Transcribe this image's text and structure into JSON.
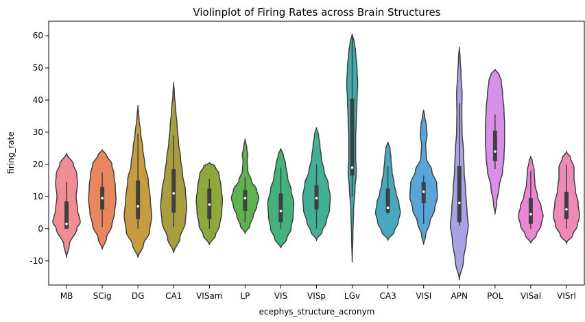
{
  "chart_data": {
    "type": "violin",
    "title": "Violinplot of Firing Rates across Brain Structures",
    "xlabel": "ecephys_structure_acronym",
    "ylabel": "firing_rate",
    "ylim": [
      -17.5,
      64.5
    ],
    "yticks": [
      -10,
      0,
      10,
      20,
      30,
      40,
      50,
      60
    ],
    "grid": false,
    "categories": [
      "MB",
      "SCig",
      "DG",
      "CA1",
      "VISam",
      "LP",
      "VIS",
      "VISp",
      "LGv",
      "CA3",
      "VISl",
      "APN",
      "POL",
      "VISal",
      "VISrl"
    ],
    "colors": [
      "#f08d93",
      "#e8875e",
      "#c79b3f",
      "#aa9d3e",
      "#8ea83b",
      "#5db34c",
      "#44b37b",
      "#41b094",
      "#40adaa",
      "#47a9be",
      "#58a6d8",
      "#a8a3e5",
      "#d98ee8",
      "#ea86d3",
      "#ef89b6"
    ],
    "series": [
      {
        "min": -9,
        "max": 23.5,
        "q1": 0,
        "median": 1.5,
        "q3": 8.5,
        "whisker_low": 0,
        "whisker_high": 14.5,
        "profile": [
          [
            -9,
            0
          ],
          [
            -5,
            0.2
          ],
          [
            0,
            0.75
          ],
          [
            2,
            1
          ],
          [
            6,
            0.8
          ],
          [
            10,
            0.7
          ],
          [
            14,
            0.8
          ],
          [
            17,
            0.75
          ],
          [
            20,
            0.5
          ],
          [
            23.5,
            0
          ]
        ]
      },
      {
        "min": -6.5,
        "max": 24.5,
        "q1": 6,
        "median": 9.5,
        "q3": 13,
        "whisker_low": 0.5,
        "whisker_high": 17.5,
        "profile": [
          [
            -6.5,
            0
          ],
          [
            -3,
            0.3
          ],
          [
            1,
            0.7
          ],
          [
            5,
            0.9
          ],
          [
            9,
            1
          ],
          [
            13,
            0.95
          ],
          [
            17,
            0.85
          ],
          [
            20,
            0.7
          ],
          [
            23,
            0.3
          ],
          [
            24.5,
            0
          ]
        ]
      },
      {
        "min": -9,
        "max": 38.5,
        "q1": 3,
        "median": 7,
        "q3": 15,
        "whisker_low": 0,
        "whisker_high": 29.5,
        "profile": [
          [
            -9,
            0
          ],
          [
            -5,
            0.4
          ],
          [
            -1,
            0.85
          ],
          [
            4,
            1
          ],
          [
            9,
            0.9
          ],
          [
            15,
            0.75
          ],
          [
            20,
            0.5
          ],
          [
            25,
            0.35
          ],
          [
            30,
            0.2
          ],
          [
            34,
            0.08
          ],
          [
            38.5,
            0
          ]
        ]
      },
      {
        "min": -7.5,
        "max": 45.5,
        "q1": 5,
        "median": 11,
        "q3": 18.5,
        "whisker_low": 0.5,
        "whisker_high": 29,
        "profile": [
          [
            -7.5,
            0
          ],
          [
            -3,
            0.45
          ],
          [
            2,
            0.85
          ],
          [
            7,
            0.95
          ],
          [
            12,
            0.85
          ],
          [
            17,
            0.65
          ],
          [
            22,
            0.5
          ],
          [
            27,
            0.35
          ],
          [
            32,
            0.25
          ],
          [
            37,
            0.15
          ],
          [
            42,
            0.05
          ],
          [
            45.5,
            0
          ]
        ]
      },
      {
        "min": -5,
        "max": 20.5,
        "q1": 3,
        "median": 7.5,
        "q3": 12.5,
        "whisker_low": 0,
        "whisker_high": 15.5,
        "profile": [
          [
            -5,
            0
          ],
          [
            -2,
            0.45
          ],
          [
            1,
            0.75
          ],
          [
            5,
            0.9
          ],
          [
            9,
            0.95
          ],
          [
            13,
            0.85
          ],
          [
            17,
            0.7
          ],
          [
            19.5,
            0.4
          ],
          [
            20.5,
            0
          ]
        ]
      },
      {
        "min": -1.5,
        "max": 28,
        "q1": 5.5,
        "median": 9.5,
        "q3": 12,
        "whisker_low": 2,
        "whisker_high": 16,
        "profile": [
          [
            -1.5,
            0
          ],
          [
            1,
            0.35
          ],
          [
            4,
            0.6
          ],
          [
            7,
            0.85
          ],
          [
            9.5,
            1
          ],
          [
            12,
            0.85
          ],
          [
            15,
            0.45
          ],
          [
            18,
            0.2
          ],
          [
            21,
            0.15
          ],
          [
            23,
            0.2
          ],
          [
            25,
            0.12
          ],
          [
            28,
            0
          ]
        ]
      },
      {
        "min": -6,
        "max": 25,
        "q1": 2,
        "median": 5.5,
        "q3": 11,
        "whisker_low": 0,
        "whisker_high": 19,
        "profile": [
          [
            -6,
            0
          ],
          [
            -3,
            0.45
          ],
          [
            0,
            0.75
          ],
          [
            4,
            0.9
          ],
          [
            8,
            0.95
          ],
          [
            12,
            0.75
          ],
          [
            16,
            0.5
          ],
          [
            20,
            0.35
          ],
          [
            23,
            0.18
          ],
          [
            25,
            0
          ]
        ]
      },
      {
        "min": -3.5,
        "max": 31.5,
        "q1": 6,
        "median": 9.5,
        "q3": 13.5,
        "whisker_low": 0,
        "whisker_high": 20,
        "profile": [
          [
            -3.5,
            0
          ],
          [
            -1,
            0.4
          ],
          [
            2,
            0.7
          ],
          [
            6,
            0.95
          ],
          [
            10,
            1
          ],
          [
            14,
            0.85
          ],
          [
            18,
            0.55
          ],
          [
            22,
            0.35
          ],
          [
            26,
            0.25
          ],
          [
            29,
            0.15
          ],
          [
            31.5,
            0
          ]
        ]
      },
      {
        "min": -10.5,
        "max": 60.5,
        "q1": 16.5,
        "median": 19,
        "q3": 40.5,
        "whisker_low": 10,
        "whisker_high": 60,
        "profile": [
          [
            -10.5,
            0
          ],
          [
            -2,
            0.05
          ],
          [
            6,
            0.1
          ],
          [
            12,
            0.2
          ],
          [
            18,
            0.3
          ],
          [
            22,
            0.25
          ],
          [
            28,
            0.25
          ],
          [
            34,
            0.3
          ],
          [
            40,
            0.35
          ],
          [
            45,
            0.4
          ],
          [
            50,
            0.35
          ],
          [
            55,
            0.25
          ],
          [
            58,
            0.15
          ],
          [
            60.5,
            0
          ]
        ]
      },
      {
        "min": -3.5,
        "max": 27,
        "q1": 5,
        "median": 6.5,
        "q3": 12.5,
        "whisker_low": 4.5,
        "whisker_high": 19.5,
        "profile": [
          [
            -3.5,
            0
          ],
          [
            -1,
            0.45
          ],
          [
            2,
            0.75
          ],
          [
            5,
            0.9
          ],
          [
            8,
            0.8
          ],
          [
            11,
            0.6
          ],
          [
            14,
            0.45
          ],
          [
            18,
            0.3
          ],
          [
            22,
            0.22
          ],
          [
            25,
            0.15
          ],
          [
            27,
            0
          ]
        ]
      },
      {
        "min": -5,
        "max": 37,
        "q1": 8,
        "median": 11.5,
        "q3": 14.5,
        "whisker_low": 1.5,
        "whisker_high": 16.5,
        "profile": [
          [
            -5,
            0
          ],
          [
            -2,
            0.15
          ],
          [
            2,
            0.45
          ],
          [
            6,
            0.8
          ],
          [
            10,
            1
          ],
          [
            14,
            0.95
          ],
          [
            18,
            0.6
          ],
          [
            22,
            0.2
          ],
          [
            26,
            0.15
          ],
          [
            29,
            0.25
          ],
          [
            32,
            0.2
          ],
          [
            35,
            0.08
          ],
          [
            37,
            0
          ]
        ]
      },
      {
        "min": -16,
        "max": 56.5,
        "q1": 2,
        "median": 8,
        "q3": 19.5,
        "whisker_low": 1,
        "whisker_high": 39,
        "profile": [
          [
            -16,
            0
          ],
          [
            -10,
            0.3
          ],
          [
            -4,
            0.5
          ],
          [
            1,
            0.65
          ],
          [
            6,
            0.55
          ],
          [
            12,
            0.45
          ],
          [
            18,
            0.35
          ],
          [
            24,
            0.3
          ],
          [
            30,
            0.2
          ],
          [
            36,
            0.18
          ],
          [
            42,
            0.2
          ],
          [
            48,
            0.12
          ],
          [
            53,
            0.06
          ],
          [
            56.5,
            0
          ]
        ]
      },
      {
        "min": 4.5,
        "max": 49.5,
        "q1": 21,
        "median": 24,
        "q3": 30.5,
        "whisker_low": 18.5,
        "whisker_high": 35.5,
        "profile": [
          [
            4.5,
            0
          ],
          [
            8,
            0.12
          ],
          [
            13,
            0.3
          ],
          [
            18,
            0.55
          ],
          [
            22,
            0.65
          ],
          [
            27,
            0.7
          ],
          [
            32,
            0.7
          ],
          [
            37,
            0.65
          ],
          [
            42,
            0.55
          ],
          [
            46,
            0.45
          ],
          [
            48,
            0.3
          ],
          [
            49.5,
            0
          ]
        ]
      },
      {
        "min": -4.5,
        "max": 22.5,
        "q1": 1.5,
        "median": 4.5,
        "q3": 9.5,
        "whisker_low": 0,
        "whisker_high": 18,
        "profile": [
          [
            -4.5,
            0
          ],
          [
            -2,
            0.4
          ],
          [
            1,
            0.75
          ],
          [
            4,
            0.9
          ],
          [
            7,
            0.75
          ],
          [
            10,
            0.5
          ],
          [
            14,
            0.3
          ],
          [
            18,
            0.25
          ],
          [
            21,
            0.12
          ],
          [
            22.5,
            0
          ]
        ]
      },
      {
        "min": -4.5,
        "max": 24,
        "q1": 3,
        "median": 6,
        "q3": 11.5,
        "whisker_low": 0,
        "whisker_high": 20,
        "profile": [
          [
            -4.5,
            0
          ],
          [
            -2,
            0.45
          ],
          [
            1,
            0.8
          ],
          [
            4,
            0.95
          ],
          [
            8,
            0.85
          ],
          [
            12,
            0.65
          ],
          [
            16,
            0.55
          ],
          [
            19,
            0.55
          ],
          [
            22,
            0.3
          ],
          [
            24,
            0
          ]
        ]
      }
    ]
  }
}
